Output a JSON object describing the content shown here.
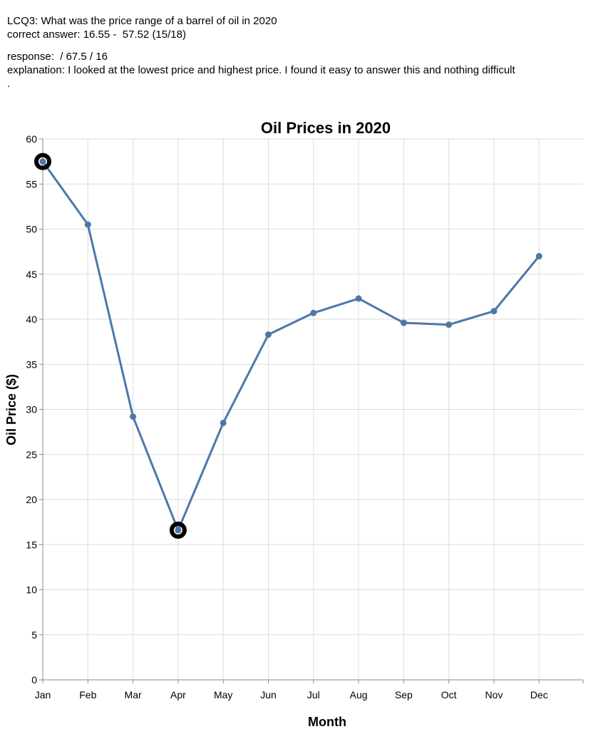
{
  "header": {
    "question": "LCQ3: What was the price range of a barrel of oil in 2020",
    "correct_answer": "correct answer: 16.55 -  57.52 (15/18)",
    "response": "response:  / 67.5 / 16",
    "explanation": "explanation: I looked at the lowest price and highest price. I found it easy to answer this and nothing difficult",
    "dot": "."
  },
  "chart_data": {
    "type": "line",
    "title": "Oil Prices in 2020",
    "xlabel": "Month",
    "ylabel": "Oil Price ($)",
    "categories": [
      "Jan",
      "Feb",
      "Mar",
      "Apr",
      "May",
      "Jun",
      "Jul",
      "Aug",
      "Sep",
      "Oct",
      "Nov",
      "Dec"
    ],
    "values": [
      57.5,
      50.5,
      29.2,
      16.6,
      28.5,
      38.3,
      40.7,
      42.3,
      39.6,
      39.4,
      40.9,
      47.0
    ],
    "ylim": [
      0,
      60
    ],
    "yticks": [
      0,
      5,
      10,
      15,
      20,
      25,
      30,
      35,
      40,
      45,
      50,
      55,
      60
    ],
    "grid": true,
    "line_color": "#4c78a8",
    "highlighted_categories": [
      "Jan",
      "Apr"
    ]
  }
}
